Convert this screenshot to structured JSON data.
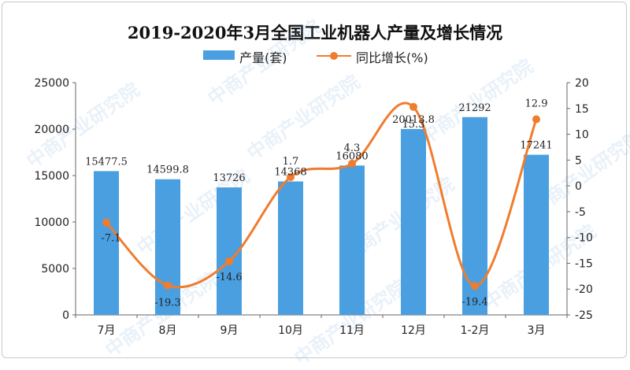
{
  "chart_data": {
    "type": "bar+line",
    "title": "2019-2020年3月全国工业机器人产量及增长情况",
    "categories": [
      "7月",
      "8月",
      "9月",
      "10月",
      "11月",
      "12月",
      "1-2月",
      "3月"
    ],
    "series": [
      {
        "name": "产量(套)",
        "type": "bar",
        "axis": "left",
        "color": "#4a9fe0",
        "values": [
          15477.5,
          14599.8,
          13726,
          14368,
          16080,
          20013.8,
          21292,
          17241
        ],
        "labels": [
          "15477.5",
          "14599.8",
          "13726",
          "14368",
          "16080",
          "20013.8",
          "21292",
          "17241"
        ]
      },
      {
        "name": "同比增长(%)",
        "type": "line",
        "axis": "right",
        "color": "#f07c2e",
        "values": [
          -7.1,
          -19.3,
          -14.6,
          1.7,
          4.3,
          15.3,
          -19.4,
          12.9
        ],
        "labels": [
          "-7.1",
          "-19.3",
          "-14.6",
          "1.7",
          "4.3",
          "15.3",
          "-19.4",
          "12.9"
        ]
      }
    ],
    "y_left": {
      "min": 0,
      "max": 25000,
      "ticks": [
        "0",
        "5000",
        "10000",
        "15000",
        "20000",
        "25000"
      ]
    },
    "y_right": {
      "min": -25,
      "max": 20,
      "ticks": [
        "-25",
        "-20",
        "-15",
        "-10",
        "-5",
        "0",
        "5",
        "10",
        "15",
        "20"
      ]
    },
    "grid": false,
    "legend": "top-center"
  },
  "watermark": "中商产业研究院"
}
